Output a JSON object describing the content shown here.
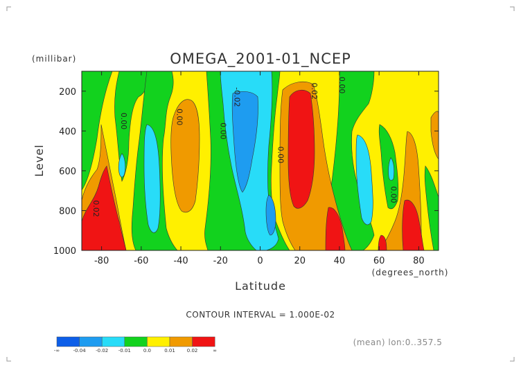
{
  "chart_data": {
    "type": "heatmap",
    "title": "OMEGA_2001-01_NCEP",
    "xlabel": "Latitude",
    "xunit": "(degrees_north)",
    "ylabel": "Level",
    "yunit": "(millibar)",
    "xlim": [
      -90,
      90
    ],
    "ylim": [
      1000,
      100
    ],
    "xticks": [
      -80,
      -60,
      -40,
      -20,
      0,
      20,
      40,
      60,
      80
    ],
    "yticks": [
      200,
      400,
      600,
      800,
      1000
    ],
    "contour_interval_text": "CONTOUR INTERVAL = 1.000E-02",
    "footnote": "(mean) lon:0..357.5",
    "contour_labels": [
      {
        "text": "0.00",
        "lat": -70,
        "level": 350
      },
      {
        "text": "0.00",
        "lat": -42,
        "level": 330
      },
      {
        "text": "0.00",
        "lat": -20,
        "level": 400
      },
      {
        "text": "-0.02",
        "lat": -13,
        "level": 230
      },
      {
        "text": "0.00",
        "lat": 9,
        "level": 520
      },
      {
        "text": "0.02",
        "lat": 26,
        "level": 200
      },
      {
        "text": "0.00",
        "lat": 40,
        "level": 170
      },
      {
        "text": "0.00",
        "lat": 66,
        "level": 720
      },
      {
        "text": "0.02",
        "lat": -84,
        "level": 790
      }
    ],
    "legend": {
      "colors": [
        "#0d5ee8",
        "#1e9cf0",
        "#28dcf8",
        "#12d21e",
        "#fff000",
        "#f09a00",
        "#f01414"
      ],
      "labels": [
        "-∞",
        "-0.04",
        "-0.02",
        "-0.01",
        "0.0",
        "0.01",
        "0.02",
        "∞"
      ]
    }
  }
}
